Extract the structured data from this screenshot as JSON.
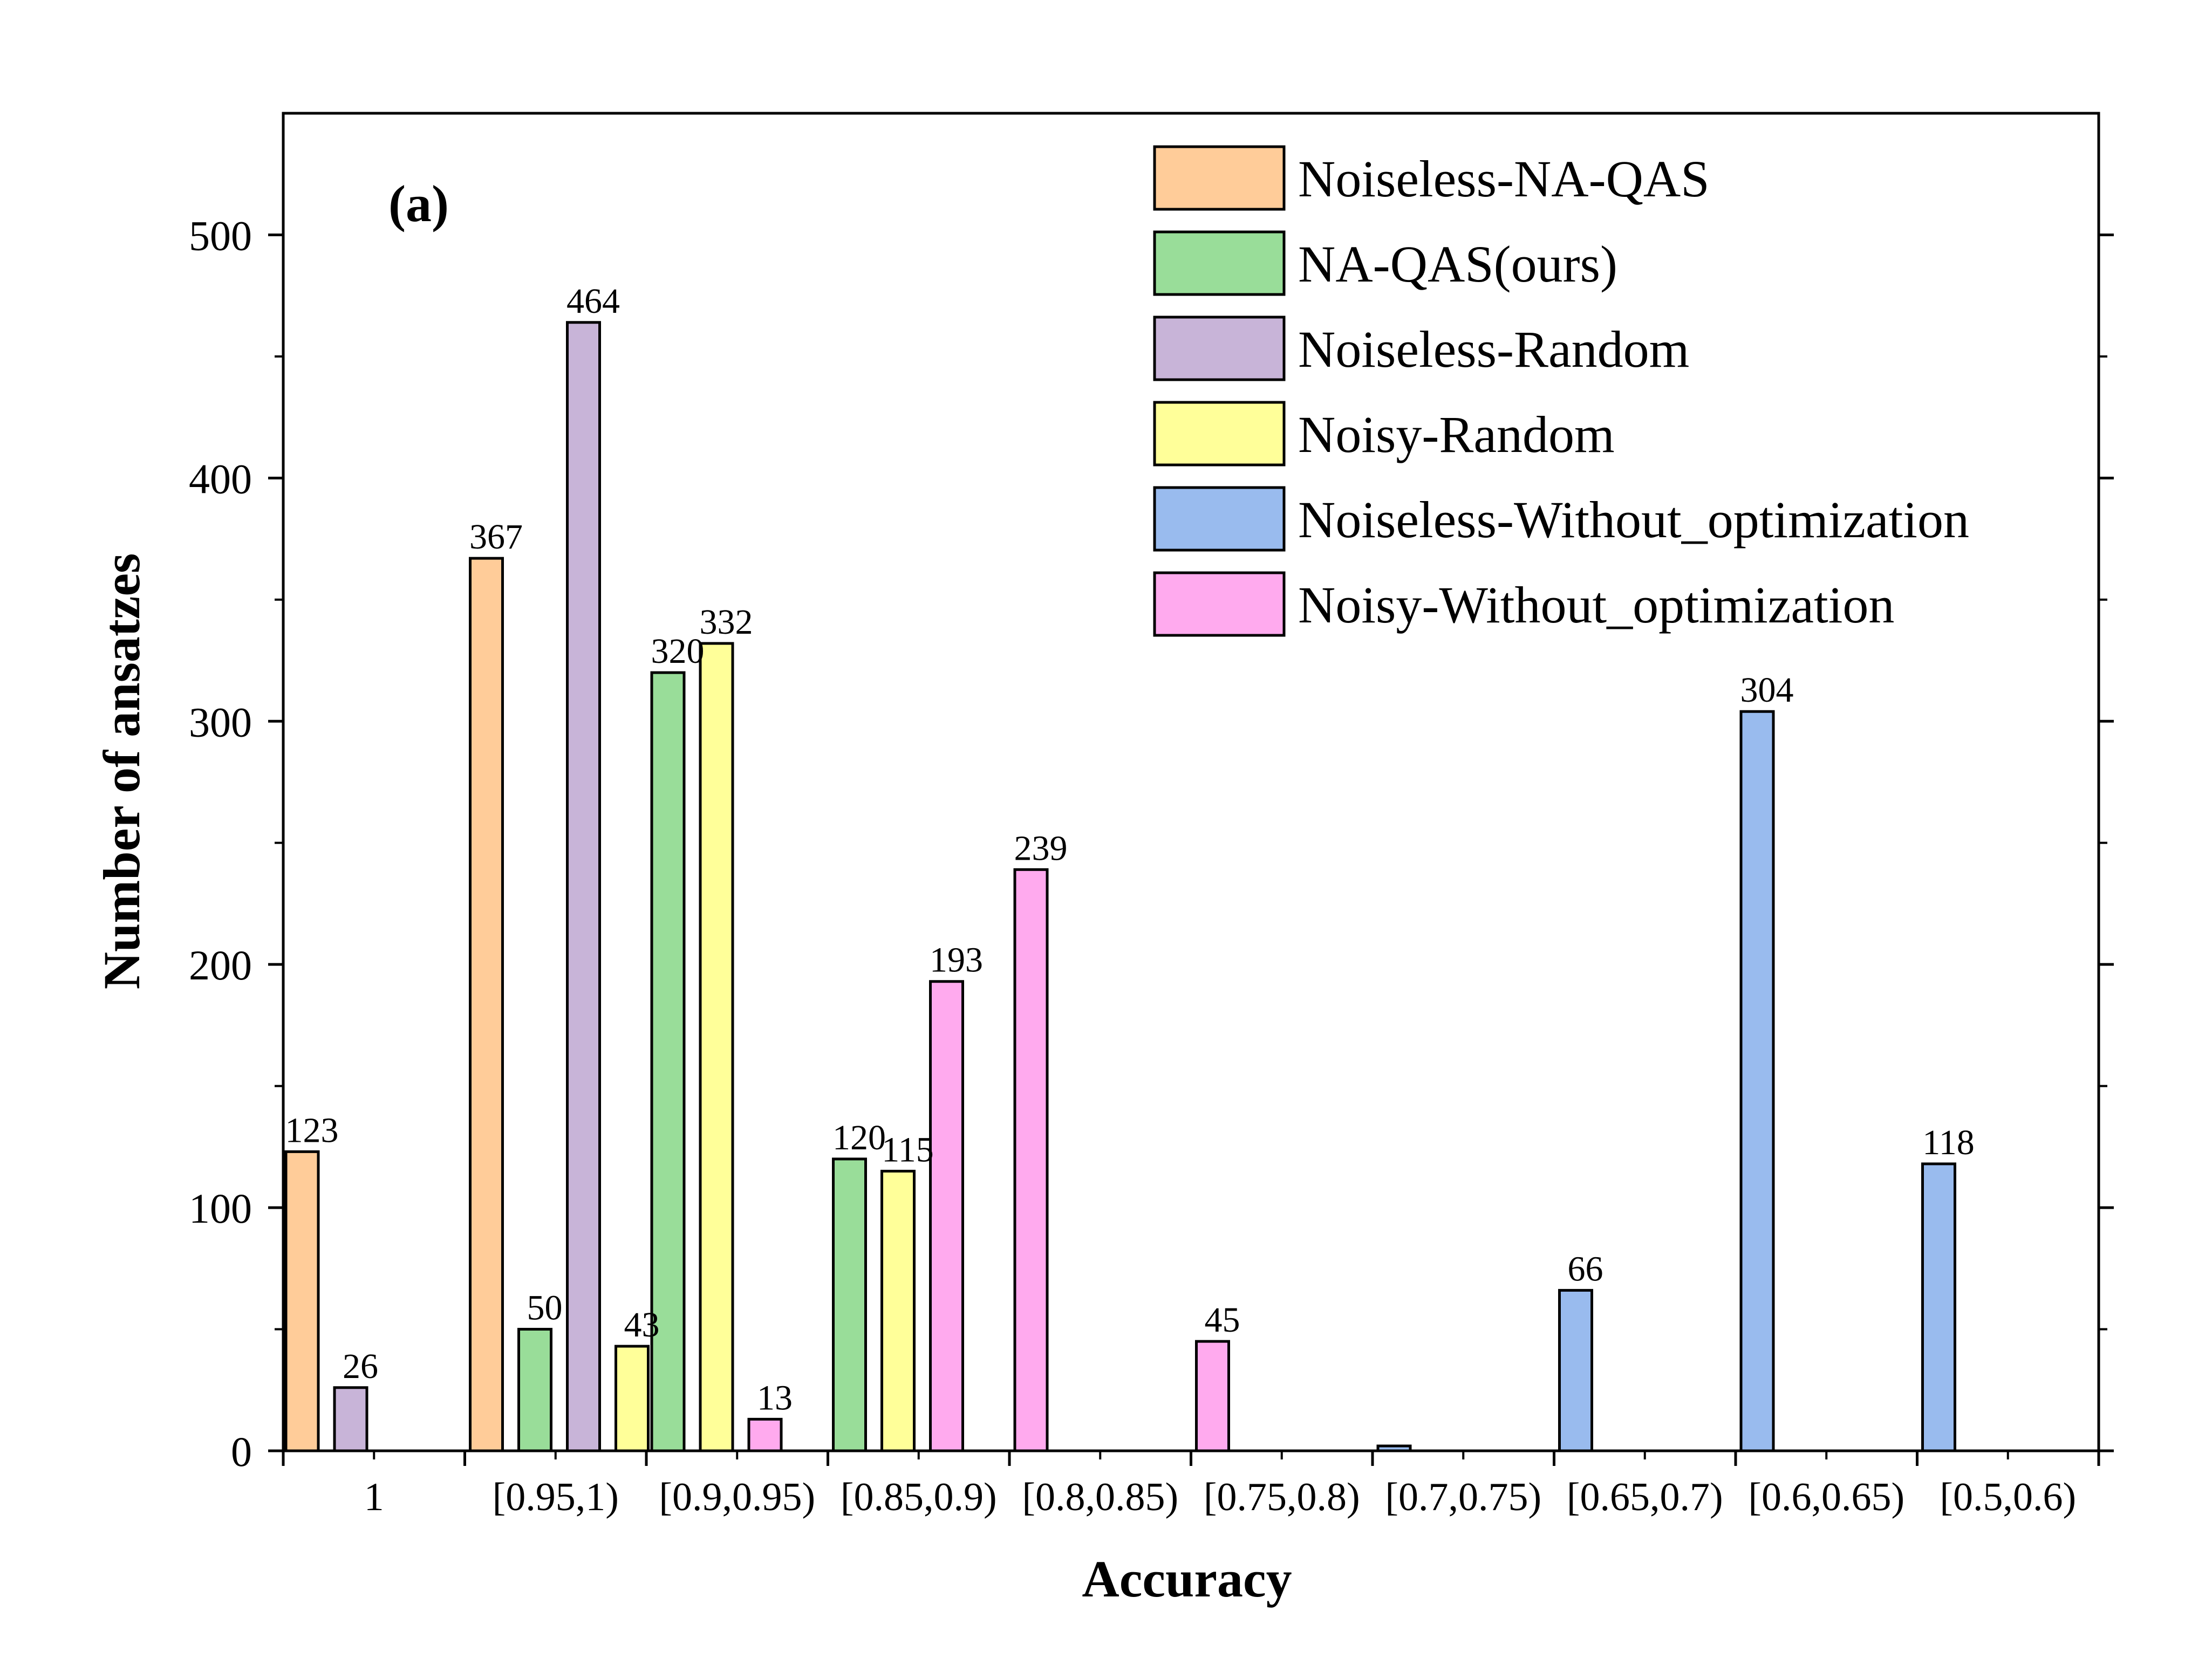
{
  "chart_data": {
    "type": "bar",
    "panel_label": "(a)",
    "xlabel": "Accuracy",
    "ylabel": "Number of ansatzes",
    "ylim": [
      0,
      550
    ],
    "yticks": [
      0,
      100,
      200,
      300,
      400,
      500
    ],
    "categories": [
      "1",
      "[0.95,1)",
      "[0.9,0.95)",
      "[0.85,0.9)",
      "[0.8,0.85)",
      "[0.75,0.8)",
      "[0.7,0.75)",
      "[0.65,0.7)",
      "[0.6,0.65)",
      "[0.5,0.6)"
    ],
    "legend_position": "top-right",
    "series": [
      {
        "name": "Noiseless-NA-QAS",
        "color": "#FFCC99",
        "values": [
          123,
          367,
          null,
          null,
          null,
          null,
          null,
          null,
          null,
          null
        ]
      },
      {
        "name": "NA-QAS(ours)",
        "color": "#99DD99",
        "values": [
          null,
          50,
          320,
          120,
          null,
          null,
          null,
          null,
          null,
          null
        ]
      },
      {
        "name": "Noiseless-Random",
        "color": "#C8B4D8",
        "values": [
          26,
          464,
          null,
          null,
          null,
          null,
          null,
          null,
          null,
          null
        ]
      },
      {
        "name": "Noisy-Random",
        "color": "#FFFF99",
        "values": [
          null,
          43,
          332,
          115,
          null,
          null,
          null,
          null,
          null,
          null
        ]
      },
      {
        "name": "Noiseless-Without_optimization",
        "color": "#99BBEE",
        "values": [
          null,
          null,
          null,
          null,
          null,
          null,
          2,
          66,
          304,
          118
        ]
      },
      {
        "name": "Noisy-Without_optimization",
        "color": "#FFAAEE",
        "values": [
          null,
          null,
          13,
          193,
          239,
          45,
          null,
          null,
          null,
          null
        ]
      }
    ],
    "data_labels": [
      {
        "series": 0,
        "category": 0,
        "text": "123"
      },
      {
        "series": 2,
        "category": 0,
        "text": "26"
      },
      {
        "series": 0,
        "category": 1,
        "text": "367"
      },
      {
        "series": 1,
        "category": 1,
        "text": "50"
      },
      {
        "series": 2,
        "category": 1,
        "text": "464"
      },
      {
        "series": 3,
        "category": 1,
        "text": "43"
      },
      {
        "series": 1,
        "category": 2,
        "text": "320"
      },
      {
        "series": 3,
        "category": 2,
        "text": "332"
      },
      {
        "series": 5,
        "category": 2,
        "text": "13"
      },
      {
        "series": 1,
        "category": 3,
        "text": "120"
      },
      {
        "series": 3,
        "category": 3,
        "text": "115"
      },
      {
        "series": 5,
        "category": 3,
        "text": "193"
      },
      {
        "series": 5,
        "category": 4,
        "text": "239"
      },
      {
        "series": 5,
        "category": 5,
        "text": "45"
      },
      {
        "series": 4,
        "category": 7,
        "text": "66"
      },
      {
        "series": 4,
        "category": 8,
        "text": "304"
      },
      {
        "series": 4,
        "category": 9,
        "text": "118"
      }
    ]
  }
}
